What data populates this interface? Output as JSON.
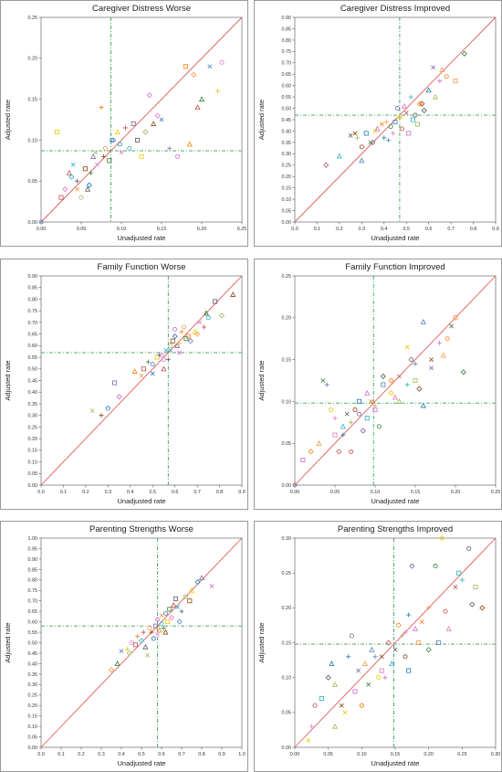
{
  "chart_data": [
    {
      "type": "scatter",
      "title": "Caregiver Distress Worse",
      "xlabel": "Unadjusted rate",
      "ylabel": "Adjusted rate",
      "xlim": [
        0,
        0.25
      ],
      "ylim": [
        0,
        0.25
      ],
      "xticks": [
        "0.00",
        "0.05",
        "0.10",
        "0.15",
        "0.20",
        "0.25"
      ],
      "yticks": [
        "0.00",
        "0.05",
        "0.10",
        "0.15",
        "0.20",
        "0.25"
      ],
      "ref_x": 0.087,
      "ref_y": 0.087,
      "points": [
        [
          0.0,
          0.0
        ],
        [
          0.02,
          0.11
        ],
        [
          0.03,
          0.04
        ],
        [
          0.035,
          0.06
        ],
        [
          0.04,
          0.07
        ],
        [
          0.045,
          0.05
        ],
        [
          0.05,
          0.03
        ],
        [
          0.055,
          0.065
        ],
        [
          0.06,
          0.045
        ],
        [
          0.065,
          0.08
        ],
        [
          0.07,
          0.07
        ],
        [
          0.075,
          0.14
        ],
        [
          0.08,
          0.09
        ],
        [
          0.085,
          0.075
        ],
        [
          0.09,
          0.1
        ],
        [
          0.095,
          0.11
        ],
        [
          0.1,
          0.085
        ],
        [
          0.105,
          0.115
        ],
        [
          0.11,
          0.09
        ],
        [
          0.12,
          0.1
        ],
        [
          0.13,
          0.11
        ],
        [
          0.14,
          0.12
        ],
        [
          0.15,
          0.125
        ],
        [
          0.16,
          0.09
        ],
        [
          0.17,
          0.08
        ],
        [
          0.18,
          0.19
        ],
        [
          0.19,
          0.18
        ],
        [
          0.2,
          0.15
        ],
        [
          0.21,
          0.19
        ],
        [
          0.22,
          0.16
        ],
        [
          0.225,
          0.195
        ],
        [
          0.025,
          0.03
        ],
        [
          0.038,
          0.055
        ],
        [
          0.058,
          0.04
        ],
        [
          0.068,
          0.085
        ],
        [
          0.078,
          0.08
        ],
        [
          0.098,
          0.095
        ],
        [
          0.115,
          0.12
        ],
        [
          0.135,
          0.155
        ],
        [
          0.185,
          0.095
        ],
        [
          0.045,
          0.04
        ],
        [
          0.062,
          0.06
        ],
        [
          0.088,
          0.1
        ],
        [
          0.125,
          0.08
        ],
        [
          0.145,
          0.13
        ],
        [
          0.195,
          0.14
        ]
      ]
    },
    {
      "type": "scatter",
      "title": "Caregiver Distress Improved",
      "xlabel": "Unadjusted rate",
      "ylabel": "Adjusted rate",
      "xlim": [
        0,
        0.9
      ],
      "ylim": [
        0,
        0.9
      ],
      "xticks": [
        "0.0",
        "0.1",
        "0.2",
        "0.3",
        "0.4",
        "0.5",
        "0.6",
        "0.7",
        "0.8",
        "0.9"
      ],
      "yticks": [
        "0.00",
        "0.05",
        "0.10",
        "0.15",
        "0.20",
        "0.25",
        "0.30",
        "0.35",
        "0.40",
        "0.45",
        "0.50",
        "0.55",
        "0.60",
        "0.65",
        "0.70",
        "0.75",
        "0.80",
        "0.85",
        "0.90"
      ],
      "ref_x": 0.47,
      "ref_y": 0.47,
      "points": [
        [
          0.14,
          0.25
        ],
        [
          0.2,
          0.29
        ],
        [
          0.25,
          0.38
        ],
        [
          0.28,
          0.37
        ],
        [
          0.3,
          0.33
        ],
        [
          0.32,
          0.39
        ],
        [
          0.35,
          0.35
        ],
        [
          0.37,
          0.41
        ],
        [
          0.39,
          0.43
        ],
        [
          0.41,
          0.44
        ],
        [
          0.43,
          0.42
        ],
        [
          0.45,
          0.44
        ],
        [
          0.47,
          0.46
        ],
        [
          0.49,
          0.51
        ],
        [
          0.5,
          0.48
        ],
        [
          0.52,
          0.55
        ],
        [
          0.54,
          0.47
        ],
        [
          0.55,
          0.43
        ],
        [
          0.57,
          0.52
        ],
        [
          0.6,
          0.58
        ],
        [
          0.62,
          0.68
        ],
        [
          0.65,
          0.62
        ],
        [
          0.68,
          0.64
        ],
        [
          0.72,
          0.62
        ],
        [
          0.76,
          0.74
        ],
        [
          0.3,
          0.27
        ],
        [
          0.36,
          0.4
        ],
        [
          0.44,
          0.39
        ],
        [
          0.48,
          0.41
        ],
        [
          0.53,
          0.45
        ],
        [
          0.58,
          0.49
        ],
        [
          0.63,
          0.55
        ],
        [
          0.27,
          0.39
        ],
        [
          0.4,
          0.37
        ],
        [
          0.46,
          0.5
        ],
        [
          0.51,
          0.39
        ],
        [
          0.56,
          0.52
        ],
        [
          0.66,
          0.67
        ],
        [
          0.34,
          0.35
        ],
        [
          0.42,
          0.36
        ]
      ]
    },
    {
      "type": "scatter",
      "title": "Family Function Worse",
      "xlabel": "Unadjusted rate",
      "ylabel": "Adjusted rate",
      "xlim": [
        0,
        0.9
      ],
      "ylim": [
        0,
        0.9
      ],
      "xticks": [
        "0.0",
        "0.1",
        "0.2",
        "0.3",
        "0.4",
        "0.5",
        "0.6",
        "0.7",
        "0.8",
        "0.9"
      ],
      "yticks": [
        "0.00",
        "0.05",
        "0.10",
        "0.15",
        "0.20",
        "0.25",
        "0.30",
        "0.35",
        "0.40",
        "0.45",
        "0.50",
        "0.55",
        "0.60",
        "0.65",
        "0.70",
        "0.75",
        "0.80",
        "0.85",
        "0.90"
      ],
      "ref_x": 0.57,
      "ref_y": 0.57,
      "points": [
        [
          0.23,
          0.32
        ],
        [
          0.27,
          0.3
        ],
        [
          0.3,
          0.33
        ],
        [
          0.33,
          0.44
        ],
        [
          0.35,
          0.38
        ],
        [
          0.42,
          0.49
        ],
        [
          0.45,
          0.47
        ],
        [
          0.48,
          0.53
        ],
        [
          0.5,
          0.52
        ],
        [
          0.52,
          0.55
        ],
        [
          0.54,
          0.56
        ],
        [
          0.55,
          0.5
        ],
        [
          0.56,
          0.58
        ],
        [
          0.57,
          0.54
        ],
        [
          0.58,
          0.6
        ],
        [
          0.59,
          0.62
        ],
        [
          0.6,
          0.64
        ],
        [
          0.61,
          0.6
        ],
        [
          0.62,
          0.57
        ],
        [
          0.63,
          0.66
        ],
        [
          0.64,
          0.68
        ],
        [
          0.65,
          0.63
        ],
        [
          0.67,
          0.62
        ],
        [
          0.69,
          0.66
        ],
        [
          0.71,
          0.7
        ],
        [
          0.73,
          0.68
        ],
        [
          0.75,
          0.72
        ],
        [
          0.78,
          0.79
        ],
        [
          0.81,
          0.73
        ],
        [
          0.86,
          0.82
        ],
        [
          0.5,
          0.48
        ],
        [
          0.53,
          0.56
        ],
        [
          0.6,
          0.67
        ],
        [
          0.66,
          0.64
        ],
        [
          0.7,
          0.65
        ],
        [
          0.74,
          0.74
        ],
        [
          0.58,
          0.58
        ],
        [
          0.62,
          0.61
        ],
        [
          0.55,
          0.54
        ],
        [
          0.46,
          0.5
        ]
      ]
    },
    {
      "type": "scatter",
      "title": "Family Function Improved",
      "xlabel": "Unadjusted rate",
      "ylabel": "Adjusted rate",
      "xlim": [
        0,
        0.25
      ],
      "ylim": [
        0,
        0.25
      ],
      "xticks": [
        "0.00",
        "0.05",
        "0.10",
        "0.15",
        "0.20",
        "0.25"
      ],
      "yticks": [
        "0.00",
        "0.05",
        "0.10",
        "0.15",
        "0.20",
        "0.25"
      ],
      "ref_x": 0.098,
      "ref_y": 0.098,
      "points": [
        [
          0.0,
          0.0
        ],
        [
          0.01,
          0.03
        ],
        [
          0.02,
          0.04
        ],
        [
          0.03,
          0.05
        ],
        [
          0.035,
          0.125
        ],
        [
          0.04,
          0.12
        ],
        [
          0.045,
          0.09
        ],
        [
          0.05,
          0.06
        ],
        [
          0.055,
          0.04
        ],
        [
          0.06,
          0.07
        ],
        [
          0.065,
          0.085
        ],
        [
          0.07,
          0.075
        ],
        [
          0.075,
          0.09
        ],
        [
          0.08,
          0.1
        ],
        [
          0.085,
          0.065
        ],
        [
          0.09,
          0.11
        ],
        [
          0.095,
          0.1
        ],
        [
          0.1,
          0.095
        ],
        [
          0.105,
          0.07
        ],
        [
          0.11,
          0.12
        ],
        [
          0.12,
          0.11
        ],
        [
          0.125,
          0.105
        ],
        [
          0.13,
          0.13
        ],
        [
          0.14,
          0.12
        ],
        [
          0.145,
          0.15
        ],
        [
          0.15,
          0.125
        ],
        [
          0.155,
          0.115
        ],
        [
          0.16,
          0.095
        ],
        [
          0.17,
          0.14
        ],
        [
          0.18,
          0.17
        ],
        [
          0.19,
          0.175
        ],
        [
          0.2,
          0.2
        ],
        [
          0.21,
          0.135
        ],
        [
          0.16,
          0.195
        ],
        [
          0.14,
          0.165
        ],
        [
          0.05,
          0.08
        ],
        [
          0.07,
          0.04
        ],
        [
          0.09,
          0.08
        ],
        [
          0.11,
          0.13
        ],
        [
          0.13,
          0.1
        ],
        [
          0.17,
          0.15
        ],
        [
          0.06,
          0.06
        ],
        [
          0.08,
          0.085
        ],
        [
          0.1,
          0.09
        ],
        [
          0.12,
          0.125
        ],
        [
          0.185,
          0.155
        ],
        [
          0.195,
          0.19
        ],
        [
          0.15,
          0.145
        ]
      ]
    },
    {
      "type": "scatter",
      "title": "Parenting Strengths Worse",
      "xlabel": "Unadjusted rate",
      "ylabel": "Adjusted rate",
      "xlim": [
        0,
        1.0
      ],
      "ylim": [
        0,
        1.0
      ],
      "xticks": [
        "0.0",
        "0.1",
        "0.2",
        "0.3",
        "0.4",
        "0.5",
        "0.6",
        "0.7",
        "0.8",
        "0.9",
        "1.0"
      ],
      "yticks": [
        "0.00",
        "0.05",
        "0.10",
        "0.15",
        "0.20",
        "0.25",
        "0.30",
        "0.35",
        "0.40",
        "0.45",
        "0.50",
        "0.55",
        "0.60",
        "0.65",
        "0.70",
        "0.75",
        "0.80",
        "0.85",
        "0.90",
        "0.95",
        "1.00"
      ],
      "ref_x": 0.58,
      "ref_y": 0.58,
      "points": [
        [
          0.35,
          0.37
        ],
        [
          0.38,
          0.4
        ],
        [
          0.4,
          0.46
        ],
        [
          0.43,
          0.47
        ],
        [
          0.45,
          0.5
        ],
        [
          0.47,
          0.49
        ],
        [
          0.5,
          0.51
        ],
        [
          0.52,
          0.48
        ],
        [
          0.53,
          0.44
        ],
        [
          0.55,
          0.55
        ],
        [
          0.56,
          0.52
        ],
        [
          0.57,
          0.58
        ],
        [
          0.58,
          0.61
        ],
        [
          0.59,
          0.56
        ],
        [
          0.6,
          0.63
        ],
        [
          0.61,
          0.57
        ],
        [
          0.62,
          0.64
        ],
        [
          0.63,
          0.6
        ],
        [
          0.65,
          0.62
        ],
        [
          0.66,
          0.68
        ],
        [
          0.68,
          0.67
        ],
        [
          0.7,
          0.65
        ],
        [
          0.72,
          0.72
        ],
        [
          0.74,
          0.7
        ],
        [
          0.78,
          0.79
        ],
        [
          0.8,
          0.81
        ],
        [
          0.85,
          0.77
        ],
        [
          0.48,
          0.53
        ],
        [
          0.54,
          0.57
        ],
        [
          0.64,
          0.66
        ],
        [
          0.69,
          0.6
        ],
        [
          0.75,
          0.75
        ],
        [
          0.58,
          0.54
        ],
        [
          0.51,
          0.55
        ],
        [
          0.6,
          0.59
        ],
        [
          0.67,
          0.71
        ],
        [
          0.44,
          0.45
        ],
        [
          0.62,
          0.55
        ]
      ]
    },
    {
      "type": "scatter",
      "title": "Parenting Strengths Improved",
      "xlabel": "Unadjusted rate",
      "ylabel": "Adjusted rate",
      "xlim": [
        0,
        0.3
      ],
      "ylim": [
        0,
        0.3
      ],
      "xticks": [
        "0.00",
        "0.05",
        "0.10",
        "0.15",
        "0.20",
        "0.25",
        "0.30"
      ],
      "yticks": [
        "0.00",
        "0.05",
        "0.10",
        "0.15",
        "0.20",
        "0.25",
        "0.30"
      ],
      "ref_x": 0.148,
      "ref_y": 0.148,
      "points": [
        [
          0.02,
          0.01
        ],
        [
          0.025,
          0.03
        ],
        [
          0.03,
          0.06
        ],
        [
          0.04,
          0.07
        ],
        [
          0.05,
          0.1
        ],
        [
          0.06,
          0.09
        ],
        [
          0.07,
          0.06
        ],
        [
          0.08,
          0.13
        ],
        [
          0.085,
          0.16
        ],
        [
          0.09,
          0.08
        ],
        [
          0.1,
          0.06
        ],
        [
          0.105,
          0.12
        ],
        [
          0.11,
          0.09
        ],
        [
          0.12,
          0.13
        ],
        [
          0.125,
          0.1
        ],
        [
          0.13,
          0.11
        ],
        [
          0.14,
          0.15
        ],
        [
          0.145,
          0.12
        ],
        [
          0.15,
          0.14
        ],
        [
          0.16,
          0.16
        ],
        [
          0.165,
          0.13
        ],
        [
          0.17,
          0.11
        ],
        [
          0.175,
          0.26
        ],
        [
          0.18,
          0.17
        ],
        [
          0.19,
          0.18
        ],
        [
          0.2,
          0.2
        ],
        [
          0.21,
          0.26
        ],
        [
          0.215,
          0.15
        ],
        [
          0.22,
          0.3
        ],
        [
          0.23,
          0.17
        ],
        [
          0.24,
          0.23
        ],
        [
          0.25,
          0.24
        ],
        [
          0.26,
          0.285
        ],
        [
          0.27,
          0.23
        ],
        [
          0.28,
          0.2
        ],
        [
          0.055,
          0.12
        ],
        [
          0.095,
          0.11
        ],
        [
          0.135,
          0.1
        ],
        [
          0.155,
          0.175
        ],
        [
          0.185,
          0.15
        ],
        [
          0.2,
          0.14
        ],
        [
          0.115,
          0.14
        ],
        [
          0.075,
          0.05
        ],
        [
          0.165,
          0.165
        ],
        [
          0.225,
          0.195
        ],
        [
          0.245,
          0.25
        ],
        [
          0.265,
          0.205
        ],
        [
          0.06,
          0.03
        ],
        [
          0.13,
          0.13
        ],
        [
          0.17,
          0.19
        ]
      ]
    }
  ]
}
